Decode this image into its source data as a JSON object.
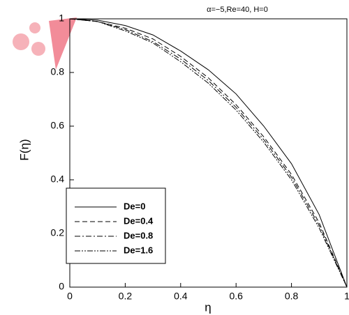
{
  "chart_data": {
    "type": "line",
    "annotation": "α=−5,Re=40, H=0",
    "xlabel": "η",
    "ylabel": "F(η)",
    "x": [
      0,
      0.1,
      0.2,
      0.3,
      0.4,
      0.5,
      0.6,
      0.7,
      0.8,
      0.9,
      1
    ],
    "series": [
      {
        "name": "De=0",
        "color": "#000000",
        "dash": "none",
        "values": [
          1,
          0.995,
          0.975,
          0.94,
          0.88,
          0.81,
          0.72,
          0.6,
          0.46,
          0.27,
          0
        ]
      },
      {
        "name": "De=0.4",
        "color": "#000000",
        "dash": "7 4",
        "values": [
          1,
          0.99,
          0.965,
          0.925,
          0.86,
          0.78,
          0.68,
          0.56,
          0.42,
          0.24,
          0
        ]
      },
      {
        "name": "De=0.8",
        "color": "#000000",
        "dash": "8 3 2 3",
        "values": [
          1,
          0.99,
          0.96,
          0.915,
          0.85,
          0.77,
          0.67,
          0.55,
          0.41,
          0.23,
          0
        ]
      },
      {
        "name": "De=1.6",
        "color": "#000000",
        "dash": "8 2 2 2 2 2",
        "values": [
          1,
          0.99,
          0.955,
          0.91,
          0.84,
          0.76,
          0.66,
          0.54,
          0.4,
          0.22,
          0
        ]
      }
    ],
    "xlim": [
      0,
      1
    ],
    "ylim": [
      0,
      1
    ],
    "xticks": [
      0,
      0.2,
      0.4,
      0.6,
      0.8,
      1
    ],
    "yticks": [
      0,
      0.2,
      0.4,
      0.6,
      0.8,
      1
    ],
    "legend": "lower left"
  }
}
